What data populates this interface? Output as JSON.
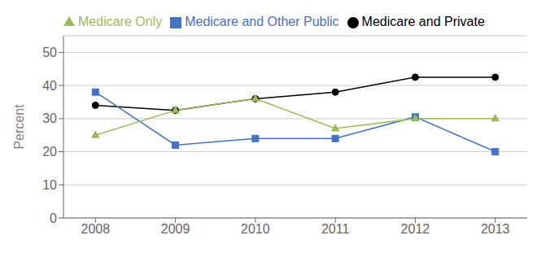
{
  "chart_data": {
    "type": "line",
    "ylabel": "Percent",
    "x": [
      2008,
      2009,
      2010,
      2011,
      2012,
      2013
    ],
    "series": [
      {
        "name": "Medicare and Private",
        "color": "#000000",
        "marker": "circle",
        "line_style": "solid",
        "values": [
          34.0,
          32.5,
          36.0,
          38.0,
          42.5,
          42.5
        ]
      },
      {
        "name": "Medicare and Other Public",
        "color": "#4472C4",
        "marker": "square",
        "line_style": "solid",
        "values": [
          38.0,
          22.0,
          24.0,
          24.0,
          30.5,
          20.0
        ]
      },
      {
        "name": "Medicare Only",
        "color": "#9BBB59",
        "marker": "triangle",
        "line_style": "solid",
        "values": [
          25.0,
          32.5,
          36.0,
          27.0,
          30.0,
          30.0
        ]
      }
    ],
    "xlim": [
      2007.6,
      2013.4
    ],
    "xticks": [
      2008,
      2009,
      2010,
      2011,
      2012,
      2013
    ],
    "ylim": [
      0,
      55
    ],
    "yticks": [
      0,
      10,
      20,
      30,
      40,
      50
    ],
    "grid": true,
    "legend": "upper left"
  }
}
